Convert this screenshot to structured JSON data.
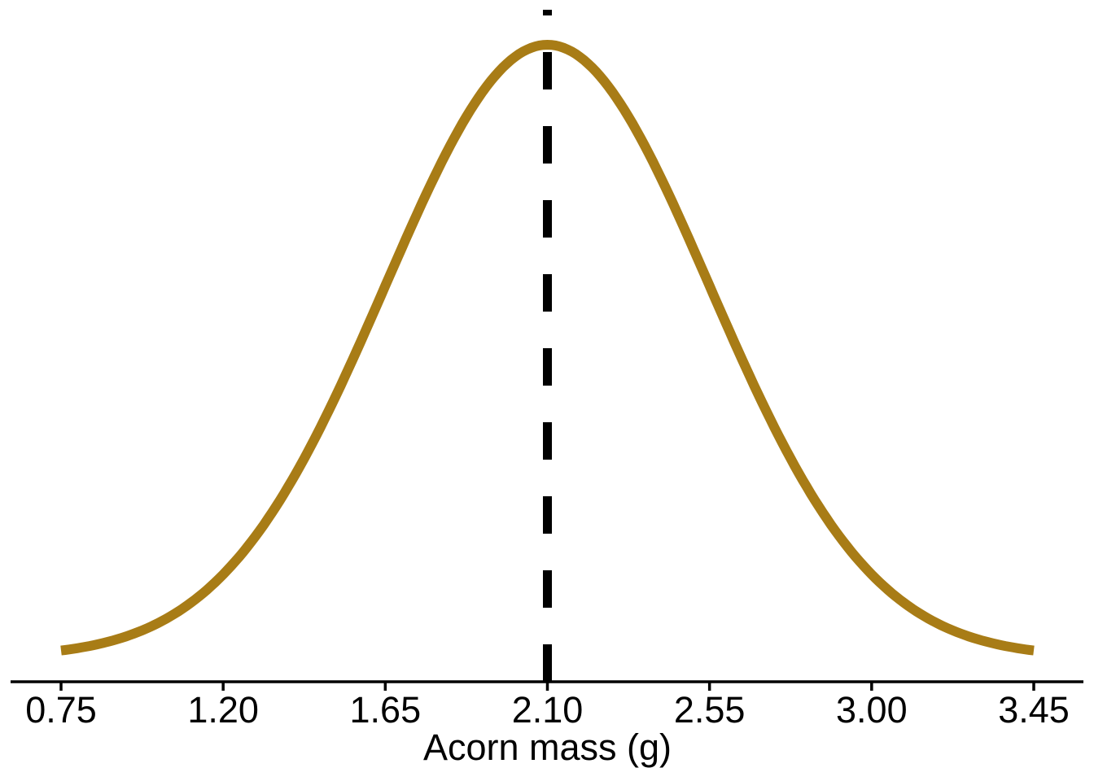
{
  "figure": {
    "background": "#ffffff"
  },
  "chart_data": {
    "type": "line",
    "subtype": "normal-density-curve",
    "title": "",
    "xlabel": "Acorn mass (g)",
    "ylabel": "",
    "xlim": [
      0.75,
      3.45
    ],
    "x_ticks": [
      0.75,
      1.2,
      1.65,
      2.1,
      2.55,
      3.0,
      3.45
    ],
    "x_tick_labels": [
      "0.75",
      "1.20",
      "1.65",
      "2.10",
      "2.55",
      "3.00",
      "3.45"
    ],
    "grid": false,
    "legend": false,
    "distribution": {
      "kind": "normal",
      "mean": 2.1,
      "sd": 0.45,
      "x_min": 0.75,
      "x_max": 3.45,
      "peak_normalized": 1.0
    },
    "mean_line": {
      "x": 2.1,
      "style": "dashed",
      "color": "#000000"
    },
    "curve_color": "#A87C16",
    "axis_color": "#000000"
  }
}
